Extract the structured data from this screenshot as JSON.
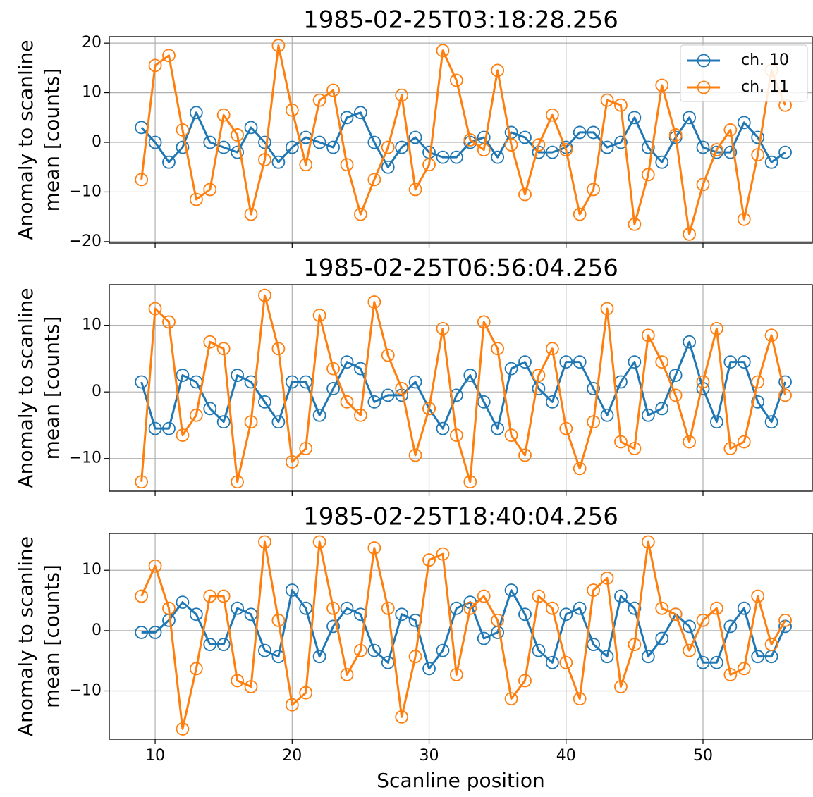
{
  "chart_data": [
    {
      "type": "line",
      "title": "1985-02-25T03:18:28.256",
      "y_label": [
        "Anomaly to scanline",
        "mean [counts]"
      ],
      "x": [
        9,
        10,
        11,
        12,
        13,
        14,
        15,
        16,
        17,
        18,
        19,
        20,
        21,
        22,
        23,
        24,
        25,
        26,
        27,
        28,
        29,
        30,
        31,
        32,
        33,
        34,
        35,
        36,
        37,
        38,
        39,
        40,
        41,
        42,
        43,
        44,
        45,
        46,
        47,
        48,
        49,
        50,
        51,
        52,
        53,
        54,
        55,
        56
      ],
      "series": [
        {
          "name": "ch. 10",
          "color": "#1f77b4",
          "values": [
            3,
            0,
            -4,
            -1,
            6,
            0,
            -1,
            -2,
            3,
            0,
            -4,
            -1,
            1,
            0,
            -1,
            5,
            6,
            0,
            -5,
            -1,
            1,
            -2,
            -3,
            -3,
            0,
            1,
            -3,
            2,
            1,
            -2,
            -2,
            -1,
            2,
            2,
            -1,
            0,
            5,
            -1,
            -4,
            1,
            5,
            -1,
            -2,
            -2,
            4,
            1,
            -4,
            -2
          ]
        },
        {
          "name": "ch. 11",
          "color": "#ff7f0e",
          "values": [
            -7.5,
            15.5,
            17.5,
            2.5,
            -11.5,
            -9.5,
            5.5,
            1.5,
            -14.5,
            -3.5,
            19.5,
            6.5,
            -4.5,
            8.5,
            10.5,
            -4.5,
            -14.5,
            -7.5,
            -1,
            9.5,
            -9.5,
            -4.5,
            18.5,
            12.5,
            0.5,
            -1.5,
            14.5,
            -0.5,
            -10.5,
            -0.5,
            5.5,
            -1.5,
            -14.5,
            -9.5,
            8.5,
            7.5,
            -16.5,
            -6.5,
            11.5,
            1.5,
            -18.5,
            -8.5,
            -1.5,
            2.5,
            -15.5,
            -2.5,
            14.5,
            7.5
          ]
        }
      ],
      "xlim": [
        6.65,
        57.98
      ],
      "ylim": [
        -20.3,
        21.3
      ],
      "xticks": [
        10,
        20,
        30,
        40,
        50
      ],
      "yticks": [
        {
          "value": -20,
          "label": "−20"
        },
        {
          "value": -10,
          "label": "−10"
        },
        0,
        10,
        20
      ],
      "grid": true,
      "legend": "upper right"
    },
    {
      "type": "line",
      "title": "1985-02-25T06:56:04.256",
      "y_label": [
        "Anomaly to scanline",
        "mean [counts]"
      ],
      "x": [
        9,
        10,
        11,
        12,
        13,
        14,
        15,
        16,
        17,
        18,
        19,
        20,
        21,
        22,
        23,
        24,
        25,
        26,
        27,
        28,
        29,
        30,
        31,
        32,
        33,
        34,
        35,
        36,
        37,
        38,
        39,
        40,
        41,
        42,
        43,
        44,
        45,
        46,
        47,
        48,
        49,
        50,
        51,
        52,
        53,
        54,
        55,
        56
      ],
      "series": [
        {
          "color": "#1f77b4",
          "values": [
            1.5,
            -5.5,
            -5.5,
            2.5,
            1.5,
            -2.5,
            -4.5,
            2.5,
            1.5,
            -1.5,
            -4.5,
            1.5,
            1.5,
            -3.5,
            0.5,
            4.5,
            3.5,
            -1.5,
            -0.5,
            -0.5,
            1.5,
            -2.5,
            -5.5,
            -0.5,
            2.5,
            -1.5,
            -5.5,
            3.5,
            4.5,
            0.5,
            -1.5,
            4.5,
            4.5,
            0.5,
            -3.5,
            1.5,
            4.5,
            -3.5,
            -2.5,
            2.5,
            7.5,
            0.5,
            -4.5,
            4.5,
            4.5,
            -1.5,
            -4.5,
            1.5
          ]
        },
        {
          "color": "#ff7f0e",
          "values": [
            -13.5,
            12.5,
            10.5,
            -6.5,
            -3.5,
            7.5,
            6.5,
            -13.5,
            -4.5,
            14.5,
            6.5,
            -10.5,
            -8.5,
            11.5,
            3.5,
            -1.5,
            -3.5,
            13.5,
            5.5,
            0.5,
            -9.5,
            -2.5,
            9.5,
            -6.5,
            -13.5,
            10.5,
            6.5,
            -6.5,
            -9.5,
            2.5,
            6.5,
            -5.5,
            -11.5,
            -4.5,
            12.5,
            -7.5,
            -8.5,
            8.5,
            4.5,
            -0.5,
            -7.5,
            1.5,
            9.5,
            -8.5,
            -7.5,
            1.5,
            8.5,
            -0.5
          ]
        }
      ],
      "xlim": [
        6.65,
        57.98
      ],
      "ylim": [
        -14.9,
        16.1
      ],
      "xticks": [
        10,
        20,
        30,
        40,
        50
      ],
      "yticks": [
        {
          "value": -10,
          "label": "−10"
        },
        0,
        10
      ],
      "grid": true
    },
    {
      "type": "line",
      "title": "1985-02-25T18:40:04.256",
      "y_label": [
        "Anomaly to scanline",
        "mean [counts]"
      ],
      "x_label": "Scanline position",
      "x": [
        9,
        10,
        11,
        12,
        13,
        14,
        15,
        16,
        17,
        18,
        19,
        20,
        21,
        22,
        23,
        24,
        25,
        26,
        27,
        28,
        29,
        30,
        31,
        32,
        33,
        34,
        35,
        36,
        37,
        38,
        39,
        40,
        41,
        42,
        43,
        44,
        45,
        46,
        47,
        48,
        49,
        50,
        51,
        52,
        53,
        54,
        55,
        56
      ],
      "series": [
        {
          "color": "#1f77b4",
          "values": [
            -0.3,
            -0.3,
            1.7,
            4.7,
            2.7,
            -2.3,
            -2.3,
            3.7,
            2.7,
            -3.3,
            -4.3,
            6.7,
            3.7,
            -4.3,
            0.7,
            3.7,
            2.7,
            -3.3,
            -5.3,
            2.7,
            1.7,
            -6.3,
            -3.3,
            3.7,
            4.7,
            -1.3,
            -0.3,
            6.7,
            2.7,
            -3.3,
            -5.3,
            2.7,
            3.7,
            -2.3,
            -4.3,
            5.7,
            3.7,
            -4.3,
            -1.3,
            2.7,
            0.7,
            -5.3,
            -5.3,
            0.7,
            3.7,
            -4.3,
            -4.3,
            0.7
          ]
        },
        {
          "color": "#ff7f0e",
          "values": [
            5.7,
            10.7,
            3.7,
            -16.3,
            -6.3,
            5.7,
            5.7,
            -8.3,
            -9.3,
            14.7,
            1.7,
            -12.3,
            -10.3,
            14.7,
            3.7,
            -7.3,
            -3.3,
            13.7,
            3.7,
            -14.3,
            -4.3,
            11.7,
            12.7,
            -7.3,
            3.7,
            5.7,
            1.7,
            -11.3,
            -8.3,
            5.7,
            3.7,
            -5.3,
            -11.3,
            6.7,
            8.7,
            -9.3,
            -2.3,
            14.7,
            3.7,
            2.7,
            -3.3,
            1.7,
            3.7,
            -7.3,
            -6.3,
            5.7,
            -2.3,
            1.7
          ]
        }
      ],
      "xlim": [
        6.65,
        57.98
      ],
      "ylim": [
        -18.0,
        16.1
      ],
      "xticks": [
        10,
        20,
        30,
        40,
        50
      ],
      "xtick_labels": true,
      "yticks": [
        {
          "value": -10,
          "label": "−10"
        },
        0,
        10
      ],
      "grid": true
    }
  ]
}
